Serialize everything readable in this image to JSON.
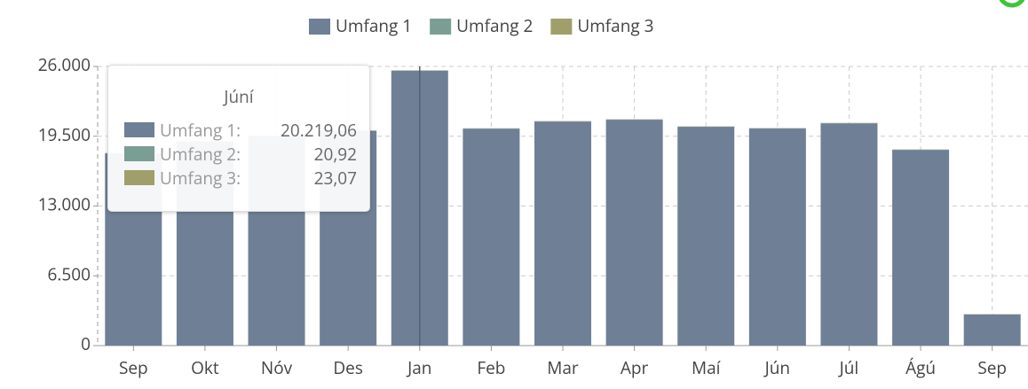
{
  "chart_data": {
    "type": "bar",
    "stacked": true,
    "categories": [
      "Sep",
      "Okt",
      "Nóv",
      "Des",
      "Jan",
      "Feb",
      "Mar",
      "Apr",
      "Maí",
      "Jún",
      "Júl",
      "Ágú",
      "Sep"
    ],
    "series": [
      {
        "name": "Umfang 1",
        "color": "#6f7f95",
        "values": [
          17900,
          19000,
          19500,
          20000,
          25600,
          20200,
          20870,
          21040,
          20380,
          20219.06,
          20700,
          18230,
          2890
        ]
      },
      {
        "name": "Umfang 2",
        "color": "#7a9e93",
        "values": [
          20,
          20,
          20,
          20,
          20,
          20,
          20,
          20,
          20,
          20.92,
          20,
          20,
          20
        ]
      },
      {
        "name": "Umfang 3",
        "color": "#a09f6b",
        "values": [
          23,
          23,
          23,
          23,
          23,
          23,
          23,
          23,
          23,
          23.07,
          23,
          23,
          23
        ]
      }
    ],
    "ylim": [
      0,
      26000
    ],
    "yticks": [
      0,
      {
        "value": 6500,
        "label": "6.500"
      },
      {
        "value": 13000,
        "label": "13.000"
      },
      {
        "value": 19500,
        "label": "19.500"
      },
      {
        "value": 26000,
        "label": "26.000"
      }
    ],
    "grid": true,
    "legend": "top"
  },
  "tooltip": {
    "title": "Júní",
    "rows": [
      {
        "label": "Umfang 1:",
        "value": "20.219,06"
      },
      {
        "label": "Umfang 2:",
        "value": "20,92"
      },
      {
        "label": "Umfang 3:",
        "value": "23,07"
      }
    ]
  }
}
